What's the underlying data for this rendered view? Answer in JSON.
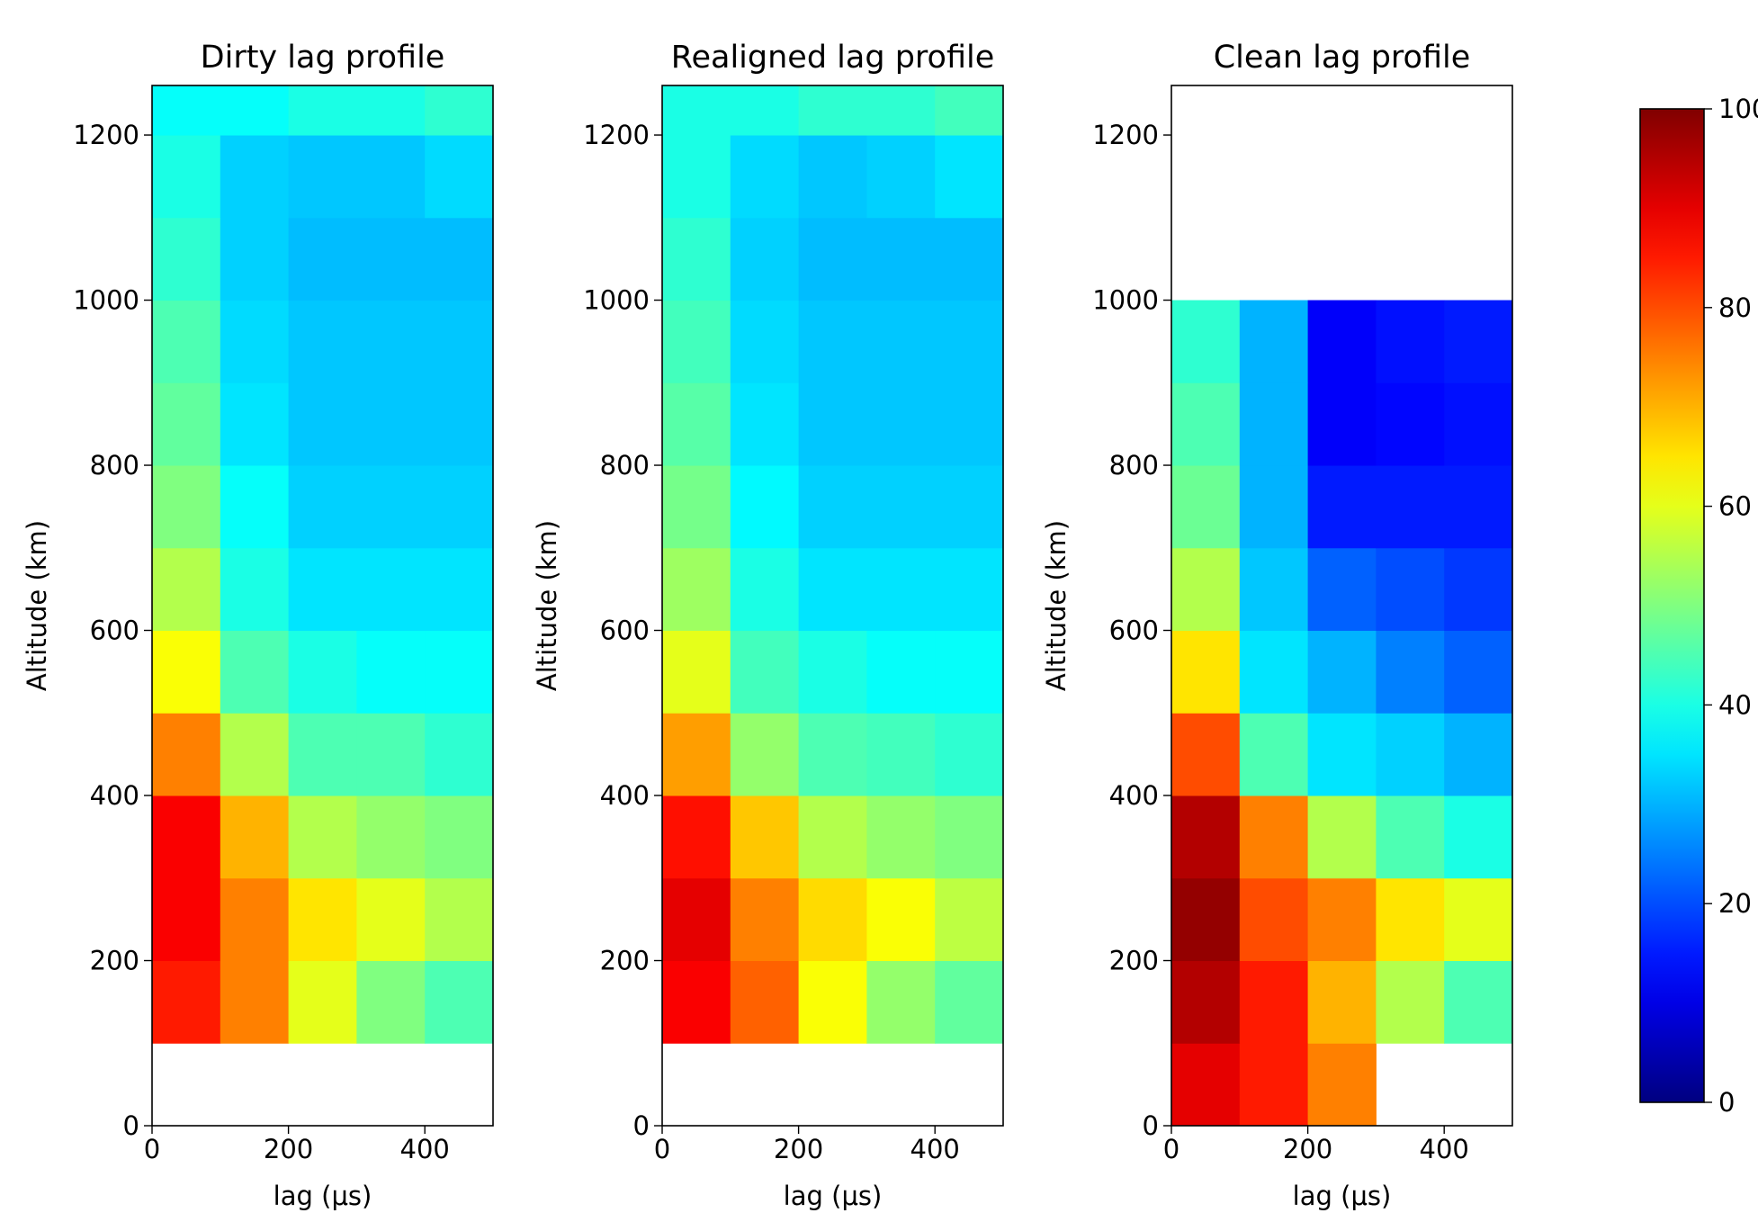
{
  "chart_data": [
    {
      "type": "heatmap",
      "title": "Dirty lag profile",
      "x_label": "lag (μs)",
      "y_label": "Altitude (km)",
      "xlim": [
        0,
        500
      ],
      "xticks": [
        0,
        200,
        400
      ],
      "ylim": [
        0,
        1260
      ],
      "yticks": [
        0,
        200,
        400,
        600,
        800,
        1000,
        1200
      ],
      "x_edges": [
        0,
        100,
        200,
        300,
        400,
        500
      ],
      "y_edges": [
        0,
        100,
        200,
        300,
        400,
        500,
        600,
        700,
        800,
        900,
        1000,
        1100,
        1200,
        1260
      ],
      "z": [
        [
          null,
          null,
          null,
          null,
          null
        ],
        [
          85,
          75,
          60,
          50,
          45
        ],
        [
          88,
          75,
          65,
          60,
          55
        ],
        [
          88,
          70,
          55,
          52,
          50
        ],
        [
          75,
          55,
          45,
          45,
          42
        ],
        [
          62,
          45,
          40,
          38,
          38
        ],
        [
          55,
          40,
          35,
          35,
          35
        ],
        [
          50,
          38,
          33,
          33,
          33
        ],
        [
          47,
          35,
          32,
          32,
          32
        ],
        [
          45,
          34,
          32,
          32,
          32
        ],
        [
          42,
          33,
          31,
          31,
          31
        ],
        [
          40,
          33,
          32,
          32,
          34
        ],
        [
          38,
          38,
          40,
          40,
          42
        ]
      ]
    },
    {
      "type": "heatmap",
      "title": "Realigned lag profile",
      "x_label": "lag (μs)",
      "y_label": "Altitude (km)",
      "xlim": [
        0,
        500
      ],
      "xticks": [
        0,
        200,
        400
      ],
      "ylim": [
        0,
        1260
      ],
      "yticks": [
        0,
        200,
        400,
        600,
        800,
        1000,
        1200
      ],
      "x_edges": [
        0,
        100,
        200,
        300,
        400,
        500
      ],
      "y_edges": [
        0,
        100,
        200,
        300,
        400,
        500,
        600,
        700,
        800,
        900,
        1000,
        1100,
        1200,
        1260
      ],
      "z": [
        [
          null,
          null,
          null,
          null,
          null
        ],
        [
          88,
          78,
          62,
          52,
          47
        ],
        [
          90,
          75,
          66,
          62,
          56
        ],
        [
          86,
          68,
          55,
          52,
          50
        ],
        [
          72,
          52,
          45,
          44,
          42
        ],
        [
          60,
          44,
          40,
          38,
          38
        ],
        [
          53,
          40,
          35,
          35,
          35
        ],
        [
          49,
          37,
          33,
          33,
          33
        ],
        [
          46,
          35,
          32,
          32,
          32
        ],
        [
          44,
          34,
          32,
          32,
          32
        ],
        [
          42,
          33,
          31,
          31,
          31
        ],
        [
          40,
          34,
          32,
          33,
          35
        ],
        [
          40,
          40,
          42,
          42,
          44
        ]
      ]
    },
    {
      "type": "heatmap",
      "title": "Clean lag profile",
      "x_label": "lag (μs)",
      "y_label": "Altitude (km)",
      "xlim": [
        0,
        500
      ],
      "xticks": [
        0,
        200,
        400
      ],
      "ylim": [
        0,
        1260
      ],
      "yticks": [
        0,
        200,
        400,
        600,
        800,
        1000,
        1200
      ],
      "x_edges": [
        0,
        100,
        200,
        300,
        400,
        500
      ],
      "y_edges": [
        0,
        100,
        200,
        300,
        400,
        500,
        600,
        700,
        800,
        900,
        1000,
        1100,
        1200,
        1260
      ],
      "z": [
        [
          90,
          85,
          75,
          null,
          null
        ],
        [
          95,
          85,
          70,
          55,
          45
        ],
        [
          98,
          80,
          75,
          65,
          60
        ],
        [
          95,
          75,
          55,
          45,
          40
        ],
        [
          80,
          45,
          35,
          33,
          30
        ],
        [
          65,
          35,
          30,
          25,
          22
        ],
        [
          55,
          32,
          22,
          20,
          18
        ],
        [
          48,
          30,
          15,
          15,
          15
        ],
        [
          45,
          30,
          12,
          13,
          14
        ],
        [
          42,
          30,
          12,
          14,
          15
        ],
        [
          null,
          null,
          null,
          null,
          null
        ],
        [
          null,
          null,
          null,
          null,
          null
        ],
        [
          null,
          null,
          null,
          null,
          null
        ]
      ]
    }
  ],
  "colorbar": {
    "colormap": "jet",
    "clim": [
      0,
      100
    ],
    "ticks": [
      0,
      20,
      40,
      60,
      80,
      100
    ]
  }
}
